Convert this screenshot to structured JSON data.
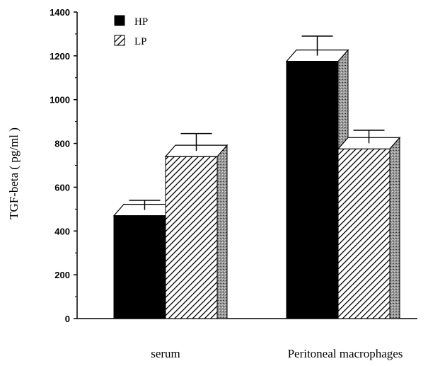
{
  "chart_data": {
    "type": "bar",
    "title": "",
    "xlabel": "",
    "ylabel": "TGF-beta ( pg/ml )",
    "ylim": [
      0,
      1400
    ],
    "yticks": [
      0,
      200,
      400,
      600,
      800,
      1000,
      1200,
      1400
    ],
    "categories": [
      "serum",
      "Peritoneal macrophages"
    ],
    "series": [
      {
        "name": "HP",
        "values": [
          470,
          1175
        ],
        "errors": [
          70,
          115
        ]
      },
      {
        "name": "LP",
        "values": [
          740,
          775
        ],
        "errors": [
          105,
          85
        ]
      }
    ],
    "grid": false,
    "legend_position": "top-left",
    "bar_style": "3d",
    "series_colors": [
      "#000000",
      "#ffffff"
    ],
    "series_patterns": [
      "solid",
      "diagonal-hatch"
    ]
  }
}
